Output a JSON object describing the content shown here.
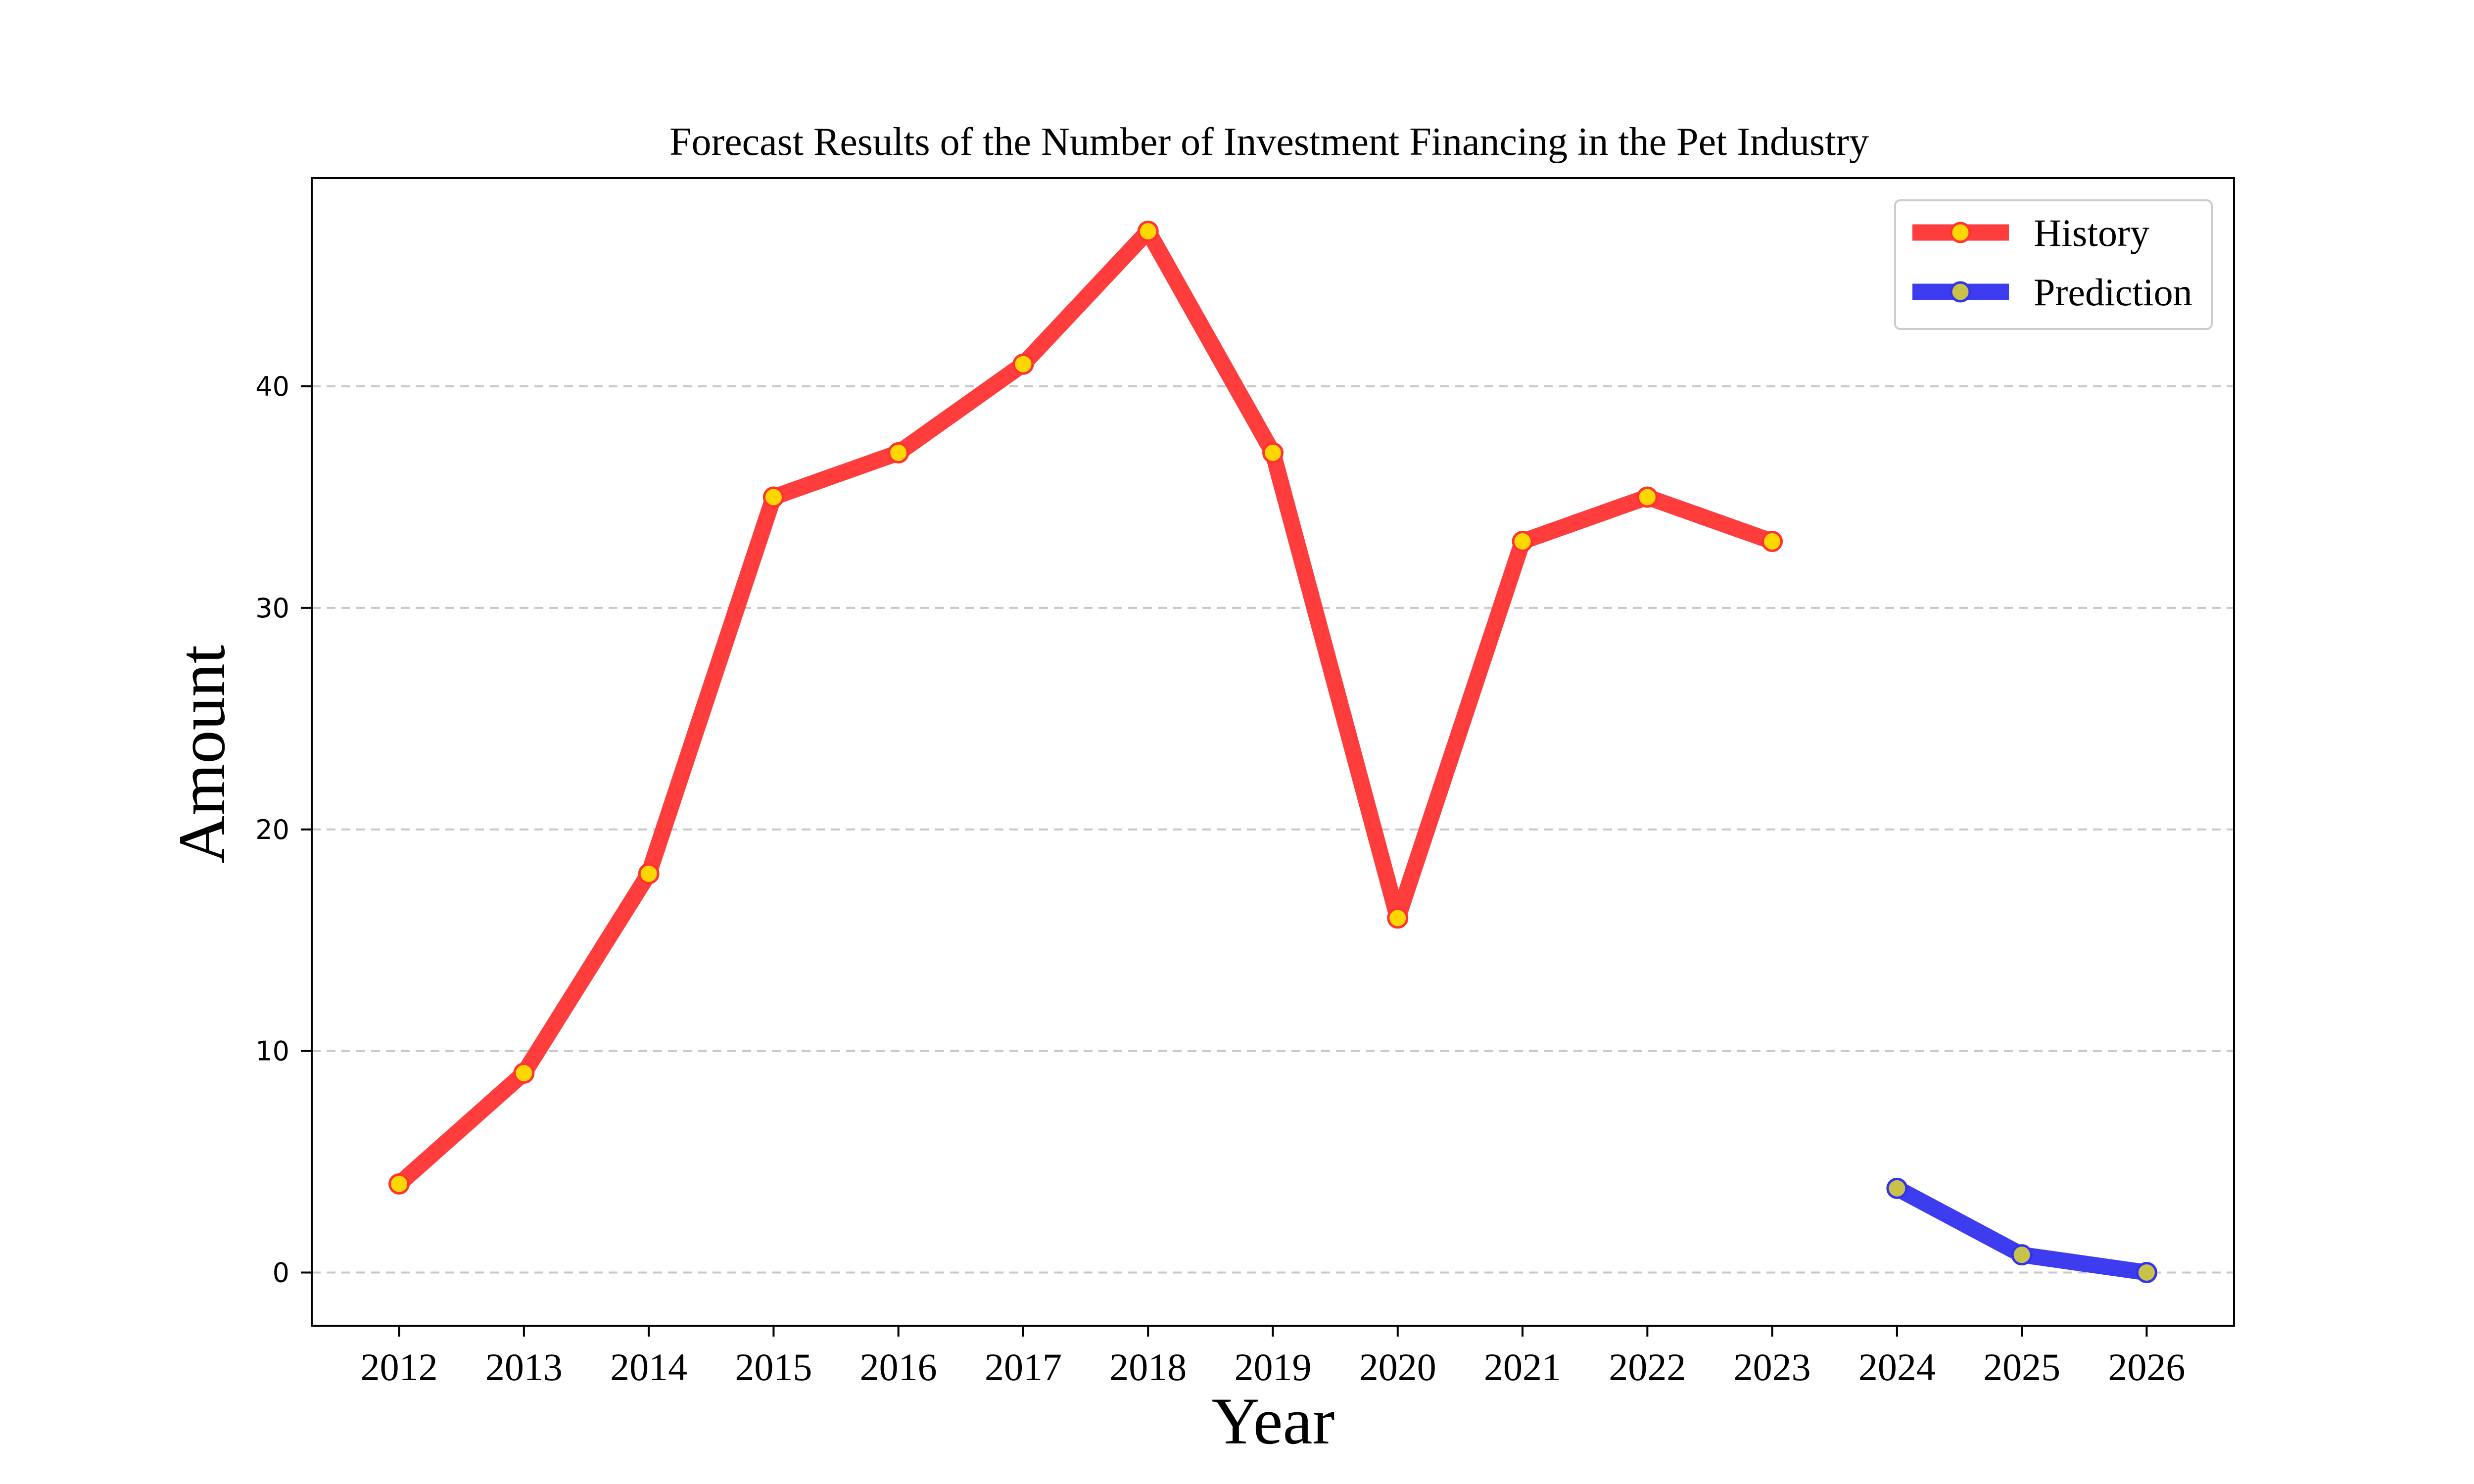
{
  "chart_data": {
    "type": "line",
    "title": "Forecast Results of the Number of Investment Financing in the Pet Industry",
    "xlabel": "Year",
    "ylabel": "Amount",
    "xlim": [
      2011.3,
      2026.7
    ],
    "ylim": [
      -2.4,
      49.4
    ],
    "xticks": [
      2012,
      2013,
      2014,
      2015,
      2016,
      2017,
      2018,
      2019,
      2020,
      2021,
      2022,
      2023,
      2024,
      2025,
      2026
    ],
    "yticks": [
      0,
      10,
      20,
      30,
      40
    ],
    "grid": "y-dashed",
    "legend_position": "top-right",
    "series": [
      {
        "name": "History",
        "color": "#ff3333",
        "marker_fill": "#ffd700",
        "marker_edge": "#ff3333",
        "x": [
          2012,
          2013,
          2014,
          2015,
          2016,
          2017,
          2018,
          2019,
          2020,
          2021,
          2022,
          2023
        ],
        "y": [
          4,
          9,
          18,
          35,
          37,
          41,
          47,
          37,
          16,
          33,
          35,
          33
        ]
      },
      {
        "name": "Prediction",
        "color": "#3333ee",
        "marker_fill": "#c9c24a",
        "marker_edge": "#3333ee",
        "x": [
          2024,
          2025,
          2026
        ],
        "y": [
          3.8,
          0.8,
          0
        ]
      }
    ]
  }
}
